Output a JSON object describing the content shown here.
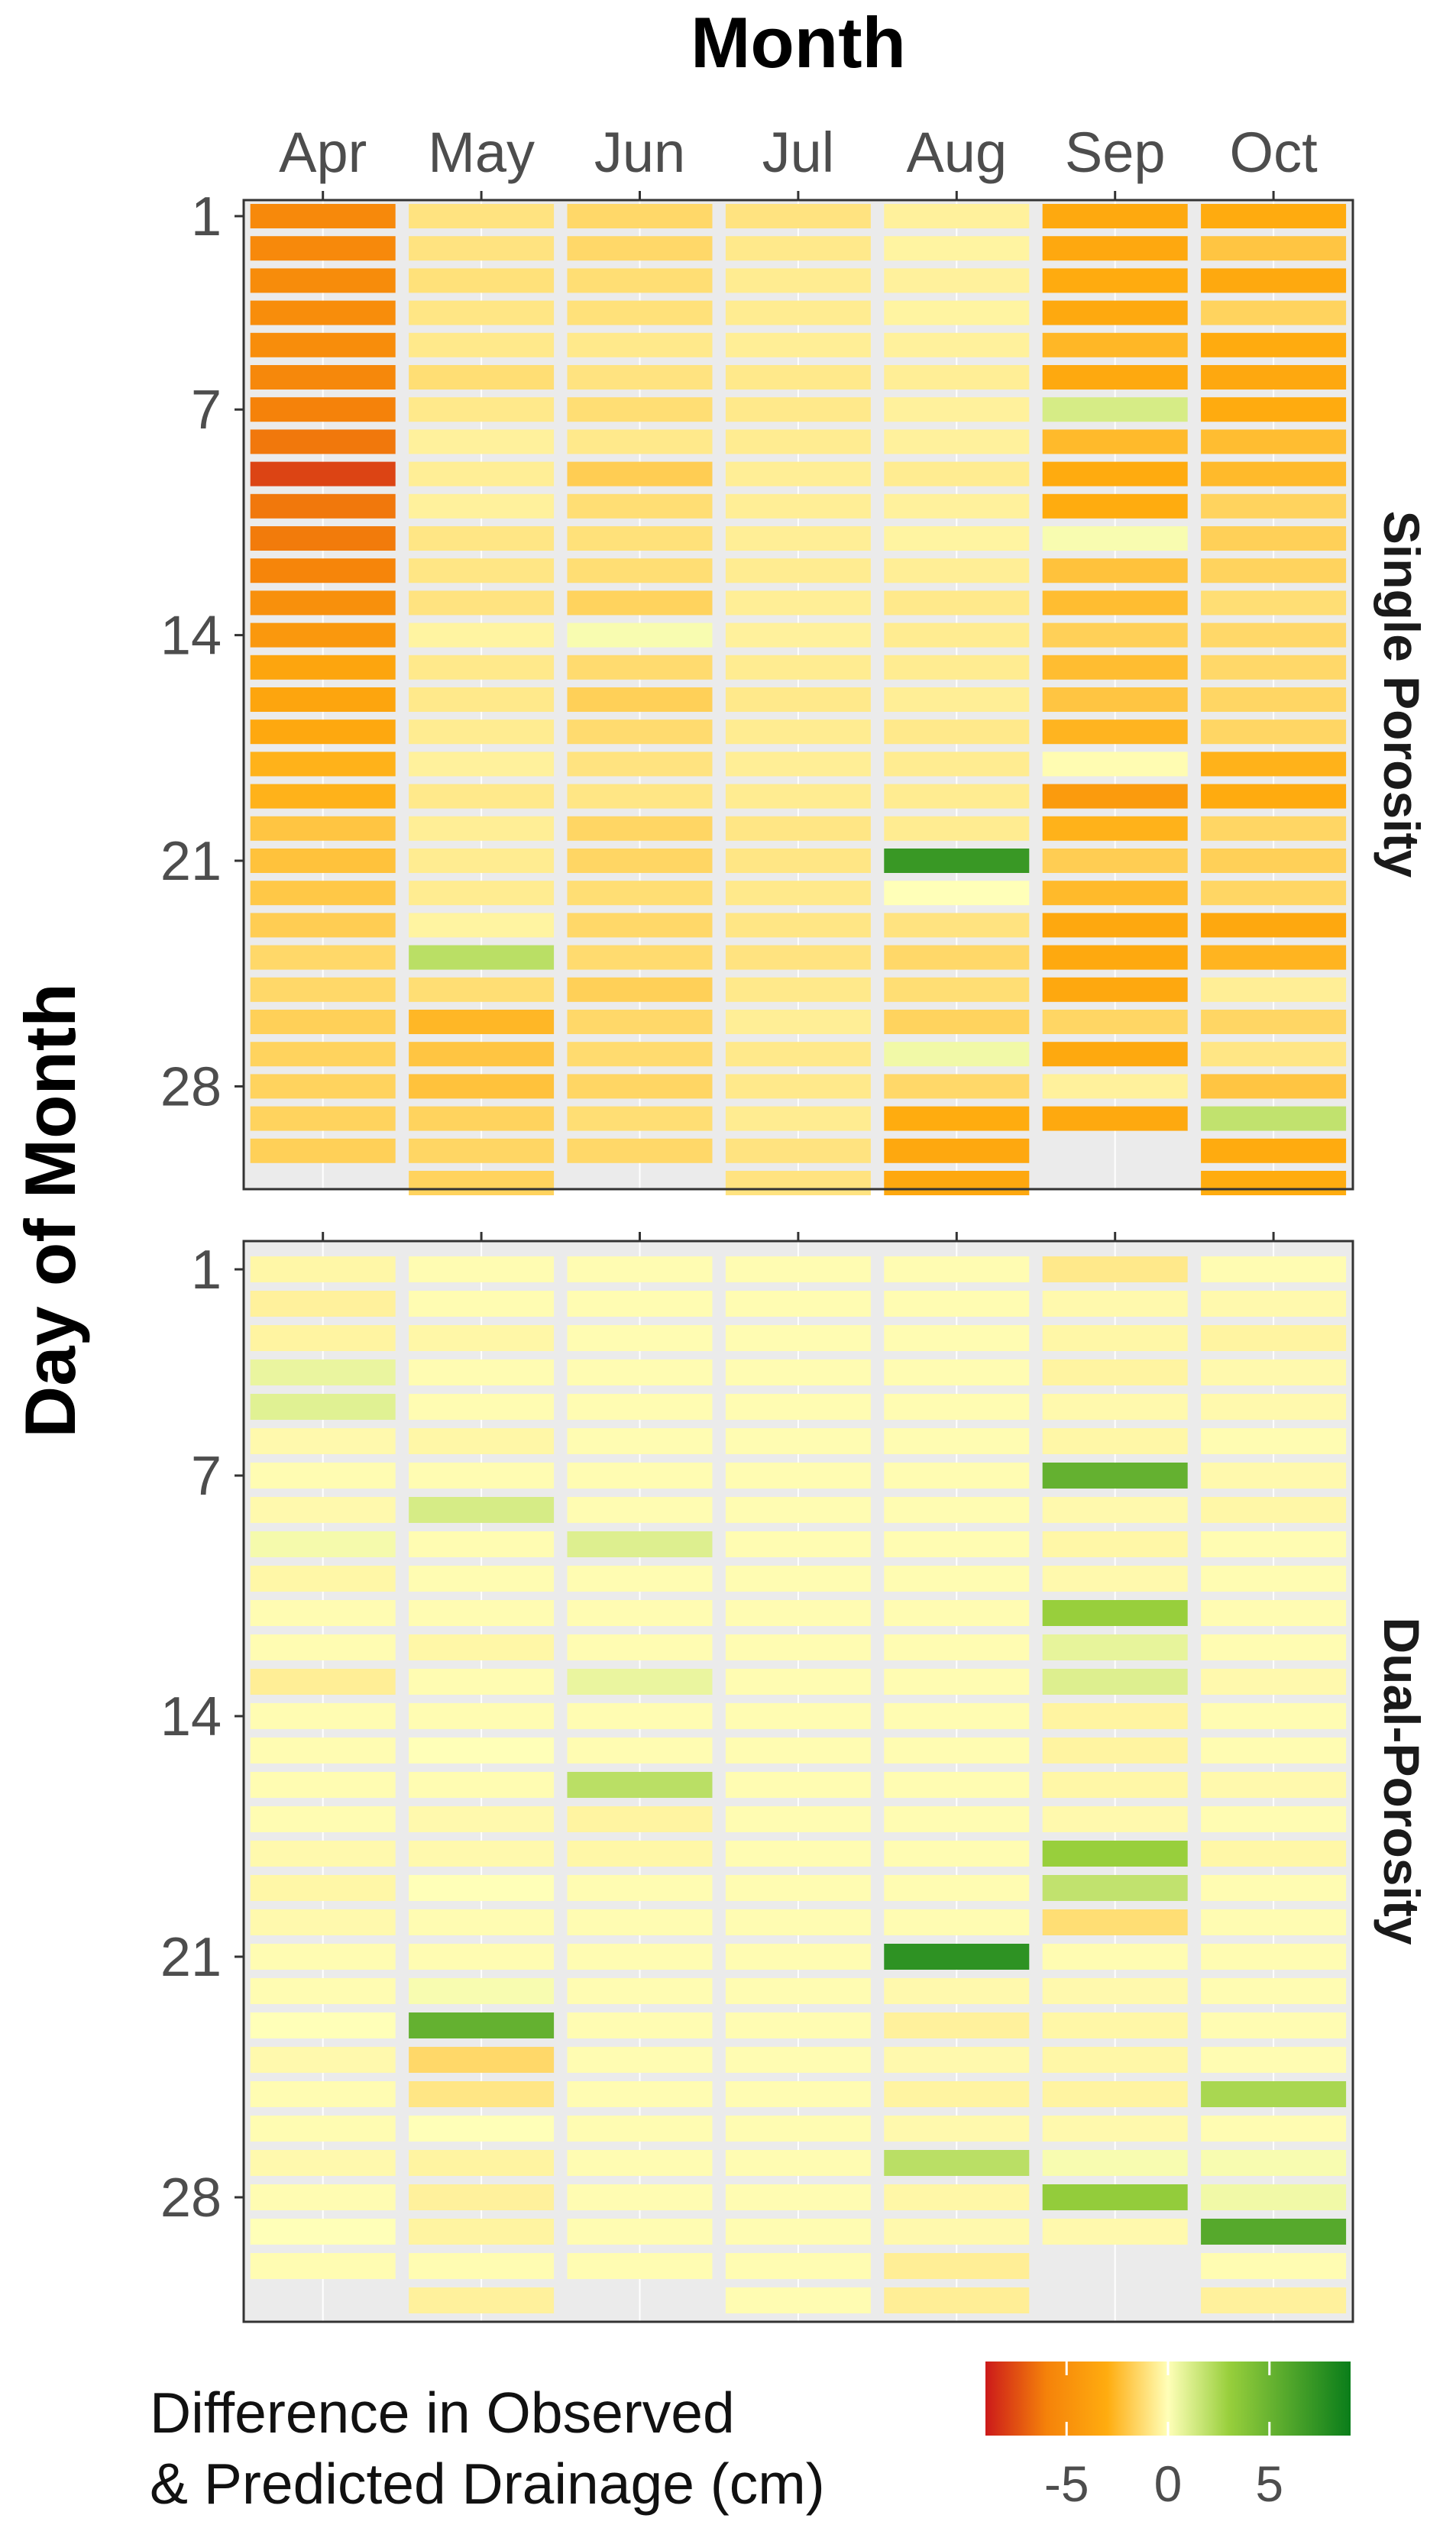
{
  "chart_data": {
    "type": "heatmap",
    "title": "Month",
    "ylabel": "Day of Month",
    "months": [
      "Apr",
      "May",
      "Jun",
      "Jul",
      "Aug",
      "Sep",
      "Oct"
    ],
    "y_ticks": [
      "1",
      "7",
      "14",
      "21",
      "28"
    ],
    "scale": {
      "range": [
        -9,
        9
      ],
      "stops": [
        {
          "value": -9,
          "color": "#cc1a1a"
        },
        {
          "value": -6,
          "color": "#f5820a"
        },
        {
          "value": -3,
          "color": "#ffac0f"
        },
        {
          "value": 0,
          "color": "#ffffb8"
        },
        {
          "value": 3,
          "color": "#98cf3c"
        },
        {
          "value": 9,
          "color": "#0a7d1a"
        }
      ]
    },
    "legend": {
      "title_line1": "Difference in Observed",
      "title_line2": "& Predicted Drainage (cm)",
      "ticks": [
        "-5",
        "0",
        "5"
      ]
    },
    "panels": [
      {
        "name": "Single Porosity",
        "days": {
          "Apr": [
            -5.5,
            -5.5,
            -5.3,
            -5.2,
            -5.2,
            -5.6,
            -6.0,
            -6.3,
            -7.8,
            -6.3,
            -6.2,
            -5.8,
            -5.0,
            -4.4,
            -3.5,
            -3.5,
            -3.3,
            -2.8,
            -2.8,
            -2.1,
            -2.2,
            -2.0,
            -1.8,
            -1.4,
            -1.4,
            -1.7,
            -1.6,
            -1.6,
            -1.6,
            -1.7
          ],
          "May": [
            -1.0,
            -1.0,
            -1.1,
            -0.9,
            -0.8,
            -1.2,
            -0.8,
            -0.5,
            -0.6,
            -0.5,
            -0.9,
            -0.9,
            -1.0,
            -0.4,
            -0.8,
            -0.8,
            -0.7,
            -0.5,
            -0.8,
            -0.6,
            -0.7,
            -0.7,
            -0.4,
            2.0,
            -1.2,
            -2.6,
            -2.1,
            -2.2,
            -1.6,
            -1.5,
            -1.6
          ],
          "Jun": [
            -1.4,
            -1.4,
            -1.2,
            -1.1,
            -0.8,
            -1.0,
            -1.2,
            -0.8,
            -1.8,
            -1.2,
            -1.1,
            -1.2,
            -1.6,
            0.2,
            -1.3,
            -1.7,
            -1.3,
            -1.0,
            -0.9,
            -1.5,
            -1.5,
            -1.2,
            -1.4,
            -1.3,
            -1.7,
            -1.4,
            -1.3,
            -1.5,
            -1.2,
            -1.4
          ],
          "Jul": [
            -1.0,
            -0.8,
            -0.7,
            -0.7,
            -0.6,
            -0.8,
            -0.8,
            -0.7,
            -0.6,
            -0.6,
            -0.6,
            -0.7,
            -0.6,
            -0.5,
            -0.7,
            -0.8,
            -0.7,
            -0.6,
            -0.7,
            -0.9,
            -0.9,
            -0.8,
            -0.9,
            -1.0,
            -0.8,
            -0.6,
            -0.8,
            -0.8,
            -0.7,
            -1.0,
            -1.0
          ],
          "Aug": [
            -0.5,
            -0.4,
            -0.5,
            -0.4,
            -0.5,
            -0.6,
            -0.5,
            -0.5,
            -0.7,
            -0.5,
            -0.4,
            -0.6,
            -0.8,
            -0.7,
            -0.7,
            -0.6,
            -0.8,
            -0.7,
            -0.7,
            -0.7,
            7.0,
            0.0,
            -1.0,
            -1.4,
            -1.2,
            -1.6,
            0.4,
            -1.4,
            -3.0,
            -3.3,
            -3.3
          ],
          "Sep": [
            -3.2,
            -3.3,
            -3.1,
            -3.2,
            -2.6,
            -3.2,
            1.2,
            -2.5,
            -3.1,
            -3.0,
            0.2,
            -2.2,
            -2.4,
            -1.7,
            -2.4,
            -2.1,
            -2.7,
            -0.1,
            -4.2,
            -2.8,
            -1.8,
            -2.5,
            -3.3,
            -3.2,
            -3.3,
            -1.5,
            -3.2,
            -0.5,
            -3.2,
            null
          ],
          "Oct": [
            -3.1,
            -2.1,
            -3.2,
            -1.6,
            -3.1,
            -3.3,
            -3.1,
            -2.4,
            -2.5,
            -1.6,
            -1.7,
            -1.6,
            -1.2,
            -1.4,
            -1.4,
            -1.5,
            -1.5,
            -2.8,
            -3.1,
            -1.5,
            -1.7,
            -1.5,
            -3.3,
            -2.7,
            -0.6,
            -1.5,
            -0.9,
            -2.1,
            1.8,
            -3.1,
            -3.0
          ]
        }
      },
      {
        "name": "Dual-Porosity",
        "days": {
          "Apr": [
            -0.3,
            -0.5,
            -0.4,
            0.6,
            0.9,
            -0.2,
            -0.1,
            -0.2,
            0.3,
            -0.3,
            -0.1,
            -0.1,
            -0.6,
            -0.1,
            -0.1,
            -0.1,
            -0.1,
            -0.2,
            -0.3,
            -0.2,
            -0.1,
            -0.1,
            0.0,
            -0.2,
            -0.1,
            -0.1,
            -0.2,
            -0.1,
            0.0,
            -0.1
          ],
          "May": [
            -0.1,
            -0.1,
            -0.3,
            -0.1,
            -0.1,
            -0.3,
            -0.1,
            1.2,
            -0.1,
            -0.1,
            -0.1,
            -0.3,
            -0.1,
            -0.1,
            0.0,
            -0.1,
            -0.2,
            -0.2,
            0.0,
            -0.1,
            -0.1,
            0.2,
            5.2,
            -1.4,
            -0.9,
            0.0,
            -0.4,
            -0.5,
            -0.4,
            -0.1,
            -0.5
          ],
          "Jun": [
            -0.1,
            -0.1,
            -0.1,
            -0.1,
            -0.1,
            -0.1,
            -0.1,
            -0.1,
            1.0,
            -0.1,
            -0.1,
            -0.1,
            0.6,
            -0.1,
            -0.1,
            2.0,
            -0.4,
            -0.3,
            -0.1,
            -0.1,
            -0.1,
            -0.1,
            -0.1,
            -0.1,
            -0.1,
            -0.1,
            -0.1,
            -0.1,
            -0.1,
            -0.1
          ],
          "Jul": [
            -0.1,
            -0.1,
            -0.1,
            -0.1,
            -0.1,
            -0.1,
            -0.1,
            -0.1,
            -0.1,
            -0.1,
            -0.1,
            -0.1,
            -0.1,
            -0.1,
            -0.1,
            -0.1,
            -0.1,
            -0.1,
            -0.1,
            -0.1,
            -0.1,
            -0.1,
            -0.1,
            -0.1,
            -0.1,
            -0.1,
            -0.1,
            -0.1,
            -0.1,
            -0.1,
            -0.1
          ],
          "Aug": [
            -0.1,
            -0.1,
            -0.1,
            -0.1,
            -0.1,
            -0.1,
            -0.1,
            -0.1,
            -0.1,
            -0.1,
            -0.1,
            -0.1,
            -0.1,
            -0.1,
            -0.1,
            -0.1,
            -0.1,
            -0.1,
            -0.1,
            -0.1,
            7.5,
            -0.2,
            -0.5,
            -0.2,
            -0.4,
            -0.2,
            2.0,
            -0.3,
            -0.2,
            -0.6,
            -0.6
          ],
          "Sep": [
            -0.8,
            -0.2,
            -0.3,
            -0.4,
            -0.2,
            -0.3,
            5.2,
            -0.2,
            -0.3,
            -0.2,
            3.0,
            0.7,
            1.0,
            -0.4,
            -0.4,
            -0.3,
            -0.2,
            3.0,
            1.8,
            -1.2,
            -0.1,
            -0.2,
            -0.3,
            -0.3,
            -0.4,
            -0.2,
            0.2,
            3.2,
            -0.2,
            null
          ],
          "Oct": [
            -0.1,
            -0.2,
            -0.4,
            -0.2,
            -0.2,
            -0.1,
            -0.2,
            -0.3,
            -0.1,
            -0.1,
            -0.1,
            -0.1,
            -0.2,
            -0.1,
            -0.1,
            -0.2,
            -0.1,
            -0.3,
            -0.1,
            -0.1,
            -0.1,
            -0.1,
            -0.1,
            -0.1,
            2.5,
            -0.1,
            0.2,
            0.4,
            5.8,
            -0.1,
            -0.5
          ]
        }
      }
    ]
  }
}
